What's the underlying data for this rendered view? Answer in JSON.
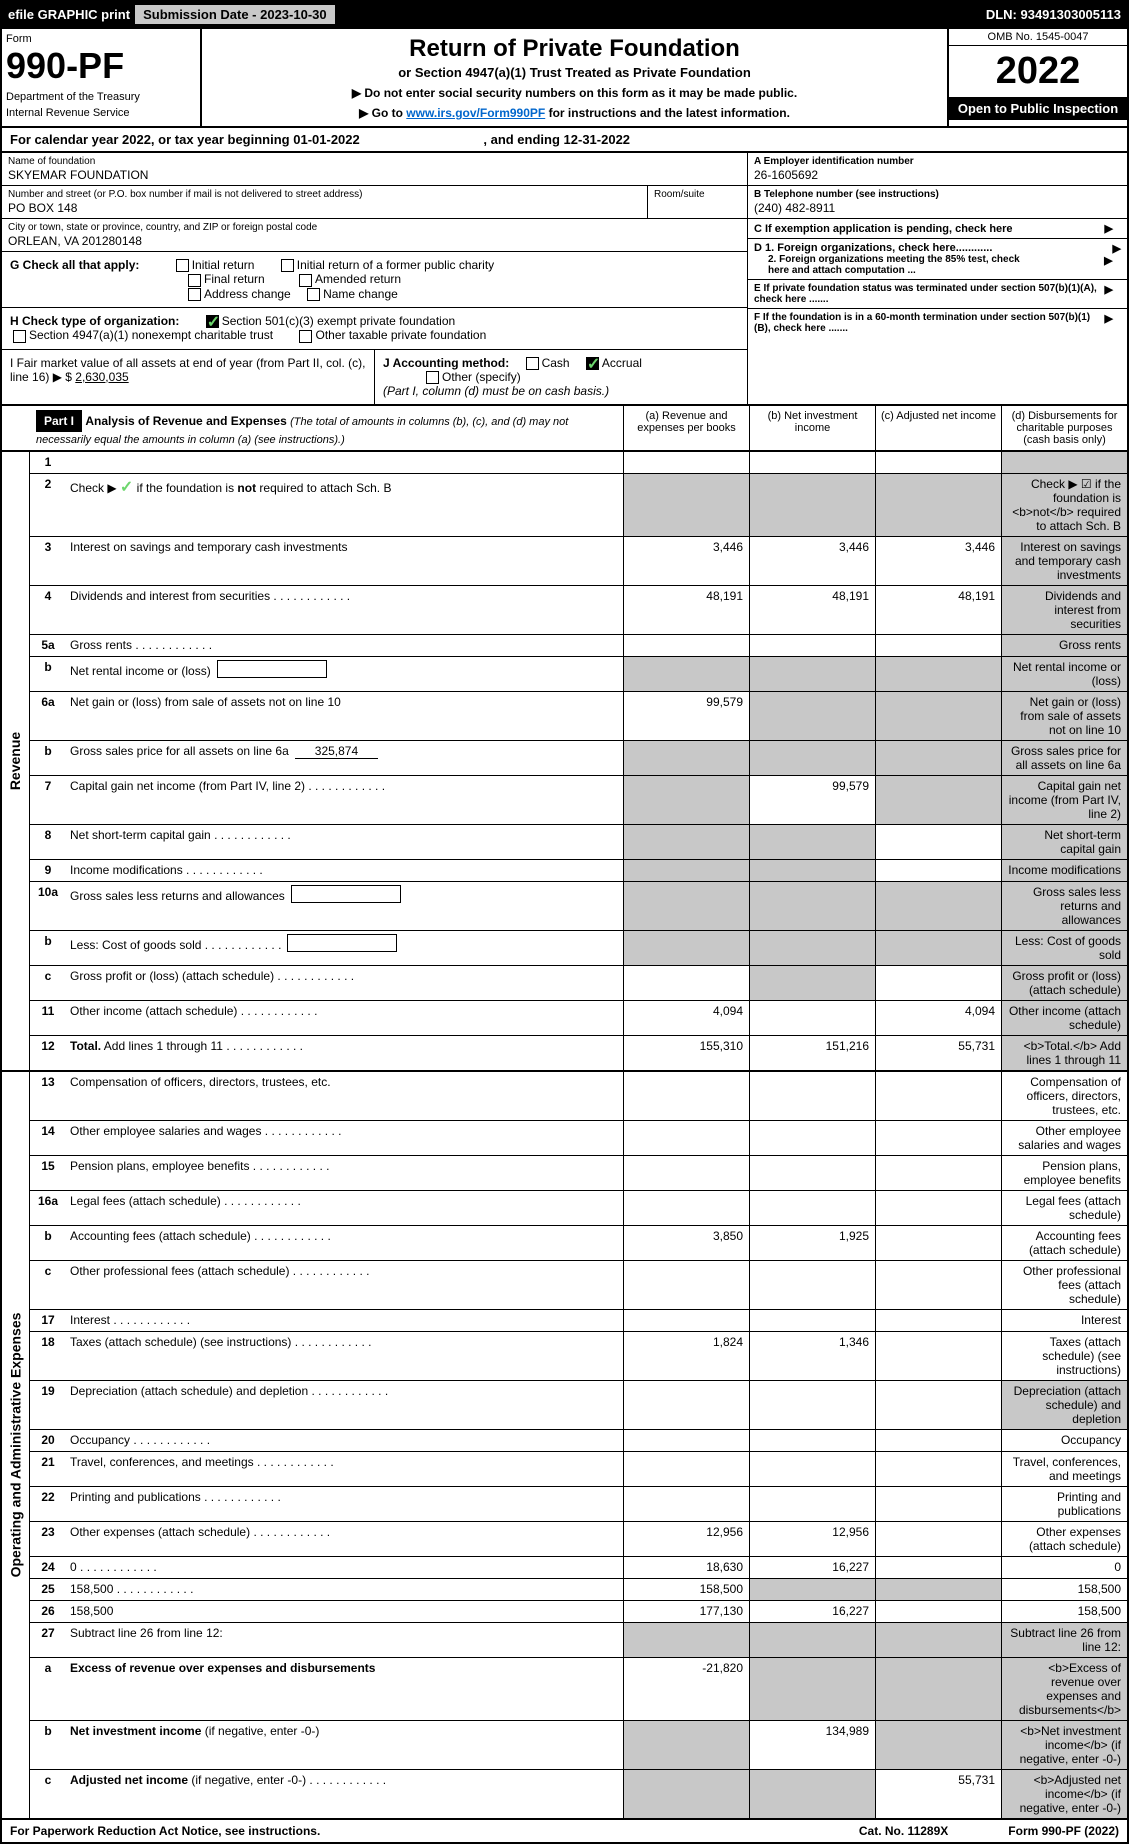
{
  "top": {
    "efile": "efile GRAPHIC print",
    "subDateLabel": "Submission Date - ",
    "subDate": "2023-10-30",
    "dln": "DLN: 93491303005113"
  },
  "header": {
    "formWord": "Form",
    "formNo": "990-PF",
    "dept": "Department of the Treasury",
    "irs": "Internal Revenue Service",
    "title": "Return of Private Foundation",
    "subtitle": "or Section 4947(a)(1) Trust Treated as Private Foundation",
    "inst1": "▶ Do not enter social security numbers on this form as it may be made public.",
    "inst2": "▶ Go to ",
    "link": "www.irs.gov/Form990PF",
    "inst2b": " for instructions and the latest information.",
    "omb": "OMB No. 1545-0047",
    "year": "2022",
    "open": "Open to Public Inspection"
  },
  "calYear": {
    "prefix": "For calendar year 2022, or tax year beginning ",
    "begin": "01-01-2022",
    "mid": ", and ending ",
    "end": "12-31-2022"
  },
  "org": {
    "nameLbl": "Name of foundation",
    "name": "SKYEMAR FOUNDATION",
    "addrLbl": "Number and street (or P.O. box number if mail is not delivered to street address)",
    "roomLbl": "Room/suite",
    "addr": "PO BOX 148",
    "cityLbl": "City or town, state or province, country, and ZIP or foreign postal code",
    "city": "ORLEAN, VA  201280148",
    "einLbl": "A Employer identification number",
    "ein": "26-1605692",
    "phoneLbl": "B Telephone number (see instructions)",
    "phone": "(240) 482-8911",
    "cLbl": "C If exemption application is pending, check here",
    "d1": "D 1. Foreign organizations, check here............",
    "d2": "2. Foreign organizations meeting the 85% test, check here and attach computation ...",
    "eLbl": "E  If private foundation status was terminated under section 507(b)(1)(A), check here .......",
    "fLbl": "F  If the foundation is in a 60-month termination under section 507(b)(1)(B), check here ......."
  },
  "g": {
    "label": "G Check all that apply:",
    "opts": [
      "Initial return",
      "Initial return of a former public charity",
      "Final return",
      "Amended return",
      "Address change",
      "Name change"
    ]
  },
  "h": {
    "label": "H Check type of organization:",
    "opt1": "Section 501(c)(3) exempt private foundation",
    "opt2": "Section 4947(a)(1) nonexempt charitable trust",
    "opt3": "Other taxable private foundation"
  },
  "i": {
    "label": "I Fair market value of all assets at end of year (from Part II, col. (c), line 16) ▶ $",
    "value": "2,630,035"
  },
  "j": {
    "label": "J Accounting method:",
    "cash": "Cash",
    "accrual": "Accrual",
    "other": "Other (specify)",
    "note": "(Part I, column (d) must be on cash basis.)"
  },
  "part1": {
    "label": "Part I",
    "title": "Analysis of Revenue and Expenses",
    "note": "(The total of amounts in columns (b), (c), and (d) may not necessarily equal the amounts in column (a) (see instructions).)",
    "cols": {
      "a": "(a)  Revenue and expenses per books",
      "b": "(b)  Net investment income",
      "c": "(c)  Adjusted net income",
      "d": "(d)  Disbursements for charitable purposes (cash basis only)"
    }
  },
  "sideLabels": {
    "rev": "Revenue",
    "exp": "Operating and Administrative Expenses"
  },
  "rows": [
    {
      "n": "1",
      "d": "",
      "a": "",
      "b": "",
      "c": "",
      "greyD": true
    },
    {
      "n": "2",
      "d": "Check ▶ ☑ if the foundation is <b>not</b> required to attach Sch. B",
      "dotsOnly": true,
      "greyAll": true
    },
    {
      "n": "3",
      "d": "Interest on savings and temporary cash investments",
      "a": "3,446",
      "b": "3,446",
      "c": "3,446",
      "greyD": true
    },
    {
      "n": "4",
      "d": "Dividends and interest from securities",
      "a": "48,191",
      "b": "48,191",
      "c": "48,191",
      "greyD": true,
      "dots": true
    },
    {
      "n": "5a",
      "d": "Gross rents",
      "dots": true,
      "greyD": true
    },
    {
      "n": "b",
      "d": "Net rental income or (loss)",
      "box": true,
      "greyAll": true
    },
    {
      "n": "6a",
      "d": "Net gain or (loss) from sale of assets not on line 10",
      "a": "99,579",
      "greyBCD": true
    },
    {
      "n": "b",
      "d": "Gross sales price for all assets on line 6a",
      "inline": "325,874",
      "greyAll": true
    },
    {
      "n": "7",
      "d": "Capital gain net income (from Part IV, line 2)",
      "b": "99,579",
      "greyA": true,
      "greyCD": true,
      "dots": true
    },
    {
      "n": "8",
      "d": "Net short-term capital gain",
      "greyAB": true,
      "greyD": true,
      "dots": true
    },
    {
      "n": "9",
      "d": "Income modifications",
      "greyAB": true,
      "greyD": true,
      "dots": true
    },
    {
      "n": "10a",
      "d": "Gross sales less returns and allowances",
      "box": true,
      "greyAll": true
    },
    {
      "n": "b",
      "d": "Less: Cost of goods sold",
      "box": true,
      "greyAll": true,
      "dots": true
    },
    {
      "n": "c",
      "d": "Gross profit or (loss) (attach schedule)",
      "greyB": true,
      "greyD": true,
      "dots": true
    },
    {
      "n": "11",
      "d": "Other income (attach schedule)",
      "a": "4,094",
      "c": "4,094",
      "greyD": true,
      "dots": true
    },
    {
      "n": "12",
      "d": "<b>Total.</b> Add lines 1 through 11",
      "a": "155,310",
      "b": "151,216",
      "c": "55,731",
      "greyD": true,
      "dots": true
    }
  ],
  "expRows": [
    {
      "n": "13",
      "d": "Compensation of officers, directors, trustees, etc."
    },
    {
      "n": "14",
      "d": "Other employee salaries and wages",
      "dots": true
    },
    {
      "n": "15",
      "d": "Pension plans, employee benefits",
      "dots": true
    },
    {
      "n": "16a",
      "d": "Legal fees (attach schedule)",
      "dots": true
    },
    {
      "n": "b",
      "d": "Accounting fees (attach schedule)",
      "a": "3,850",
      "b": "1,925",
      "dots": true
    },
    {
      "n": "c",
      "d": "Other professional fees (attach schedule)",
      "dots": true
    },
    {
      "n": "17",
      "d": "Interest",
      "dots": true
    },
    {
      "n": "18",
      "d": "Taxes (attach schedule) (see instructions)",
      "a": "1,824",
      "b": "1,346",
      "dots": true
    },
    {
      "n": "19",
      "d": "Depreciation (attach schedule) and depletion",
      "greyD": true,
      "dots": true
    },
    {
      "n": "20",
      "d": "Occupancy",
      "dots": true
    },
    {
      "n": "21",
      "d": "Travel, conferences, and meetings",
      "dots": true
    },
    {
      "n": "22",
      "d": "Printing and publications",
      "dots": true
    },
    {
      "n": "23",
      "d": "Other expenses (attach schedule)",
      "a": "12,956",
      "b": "12,956",
      "dots": true
    },
    {
      "n": "24",
      "d": "0",
      "a": "18,630",
      "b": "16,227",
      "dots": true
    },
    {
      "n": "25",
      "d": "158,500",
      "a": "158,500",
      "greyBC": true,
      "dots": true
    },
    {
      "n": "26",
      "d": "158,500",
      "a": "177,130",
      "b": "16,227"
    },
    {
      "n": "27",
      "d": "Subtract line 26 from line 12:",
      "greyAll": true
    },
    {
      "n": "a",
      "d": "<b>Excess of revenue over expenses and disbursements</b>",
      "a": "-21,820",
      "greyBCD": true
    },
    {
      "n": "b",
      "d": "<b>Net investment income</b> (if negative, enter -0-)",
      "b": "134,989",
      "greyA": true,
      "greyCD": true
    },
    {
      "n": "c",
      "d": "<b>Adjusted net income</b> (if negative, enter -0-)",
      "c": "55,731",
      "greyAB": true,
      "greyD": true,
      "dots": true
    }
  ],
  "footer": {
    "left": "For Paperwork Reduction Act Notice, see instructions.",
    "mid": "Cat. No. 11289X",
    "right": "Form 990-PF (2022)"
  }
}
